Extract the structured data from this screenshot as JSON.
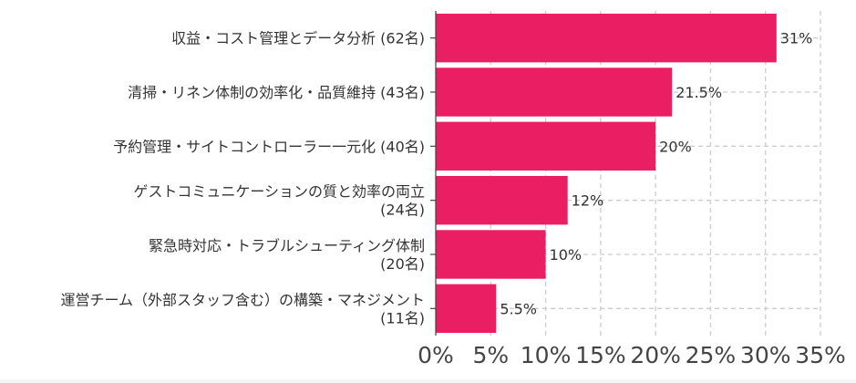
{
  "chart_data": {
    "type": "bar",
    "orientation": "horizontal",
    "categories": [
      [
        "収益・コスト管理とデータ分析 (62名)"
      ],
      [
        "清掃・リネン体制の効率化・品質維持 (43名)"
      ],
      [
        "予約管理・サイトコントローラー一元化 (40名)"
      ],
      [
        "ゲストコミュニケーションの質と効率の両立",
        "(24名)"
      ],
      [
        "緊急時対応・トラブルシューティング体制",
        "(20名)"
      ],
      [
        "運営チーム（外部スタッフ含む）の構築・マネジメント",
        "(11名)"
      ]
    ],
    "values": [
      31,
      21.5,
      20,
      12,
      10,
      5.5
    ],
    "data_labels": [
      "31%",
      "21.5%",
      "20%",
      "12%",
      "10%",
      "5.5%"
    ],
    "x_ticks": [
      "0%",
      "5%",
      "10%",
      "15%",
      "20%",
      "25%",
      "30%",
      "35%"
    ],
    "xlim": [
      0,
      35
    ],
    "bar_color": "#e91e63",
    "grid": true
  }
}
